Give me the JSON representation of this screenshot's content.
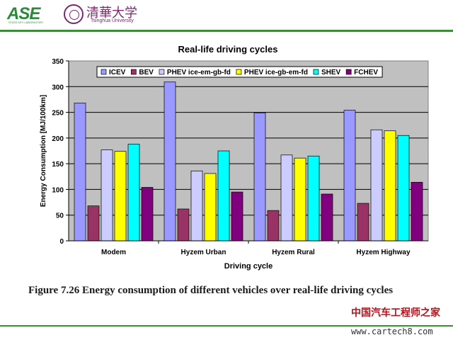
{
  "header": {
    "lab_logo_text": "ASE",
    "lab_logo_subtext": "STATE KEY LABORATORY",
    "university_name": "清華大学",
    "university_subtitle": "Tsinghua University"
  },
  "caption": "Figure 7.26 Energy consumption of different vehicles over real-life driving cycles",
  "watermark": {
    "cn": "中国汽车工程师之家",
    "url": "www.cartech8.com"
  },
  "colors": {
    "brand_green": "#3c8c3c",
    "university_purple": "#7b2a6e",
    "plot_background": "#c0c0c0"
  },
  "chart_data": {
    "type": "bar",
    "title": "Real-life driving cycles",
    "xlabel": "Driving cycle",
    "ylabel": "Energy Consumption [MJ/100km]",
    "ylim": [
      0,
      350
    ],
    "yticks": [
      0,
      50,
      100,
      150,
      200,
      250,
      300,
      350
    ],
    "grid": true,
    "legend_position": "top",
    "categories": [
      "Modem",
      "Hyzem Urban",
      "Hyzem Rural",
      "Hyzem Highway"
    ],
    "series": [
      {
        "name": "ICEV",
        "color": "#9999ff",
        "values": [
          268,
          309,
          249,
          254
        ]
      },
      {
        "name": "BEV",
        "color": "#993366",
        "values": [
          68,
          62,
          59,
          73
        ]
      },
      {
        "name": "PHEV ice-em-gb-fd",
        "color": "#ccccff",
        "values": [
          177,
          136,
          167,
          216
        ]
      },
      {
        "name": "PHEV ice-gb-em-fd",
        "color": "#ffff00",
        "values": [
          174,
          131,
          161,
          214
        ]
      },
      {
        "name": "SHEV",
        "color": "#00ffff",
        "values": [
          188,
          175,
          165,
          205
        ]
      },
      {
        "name": "FCHEV",
        "color": "#800080",
        "values": [
          104,
          95,
          91,
          114
        ]
      }
    ]
  }
}
